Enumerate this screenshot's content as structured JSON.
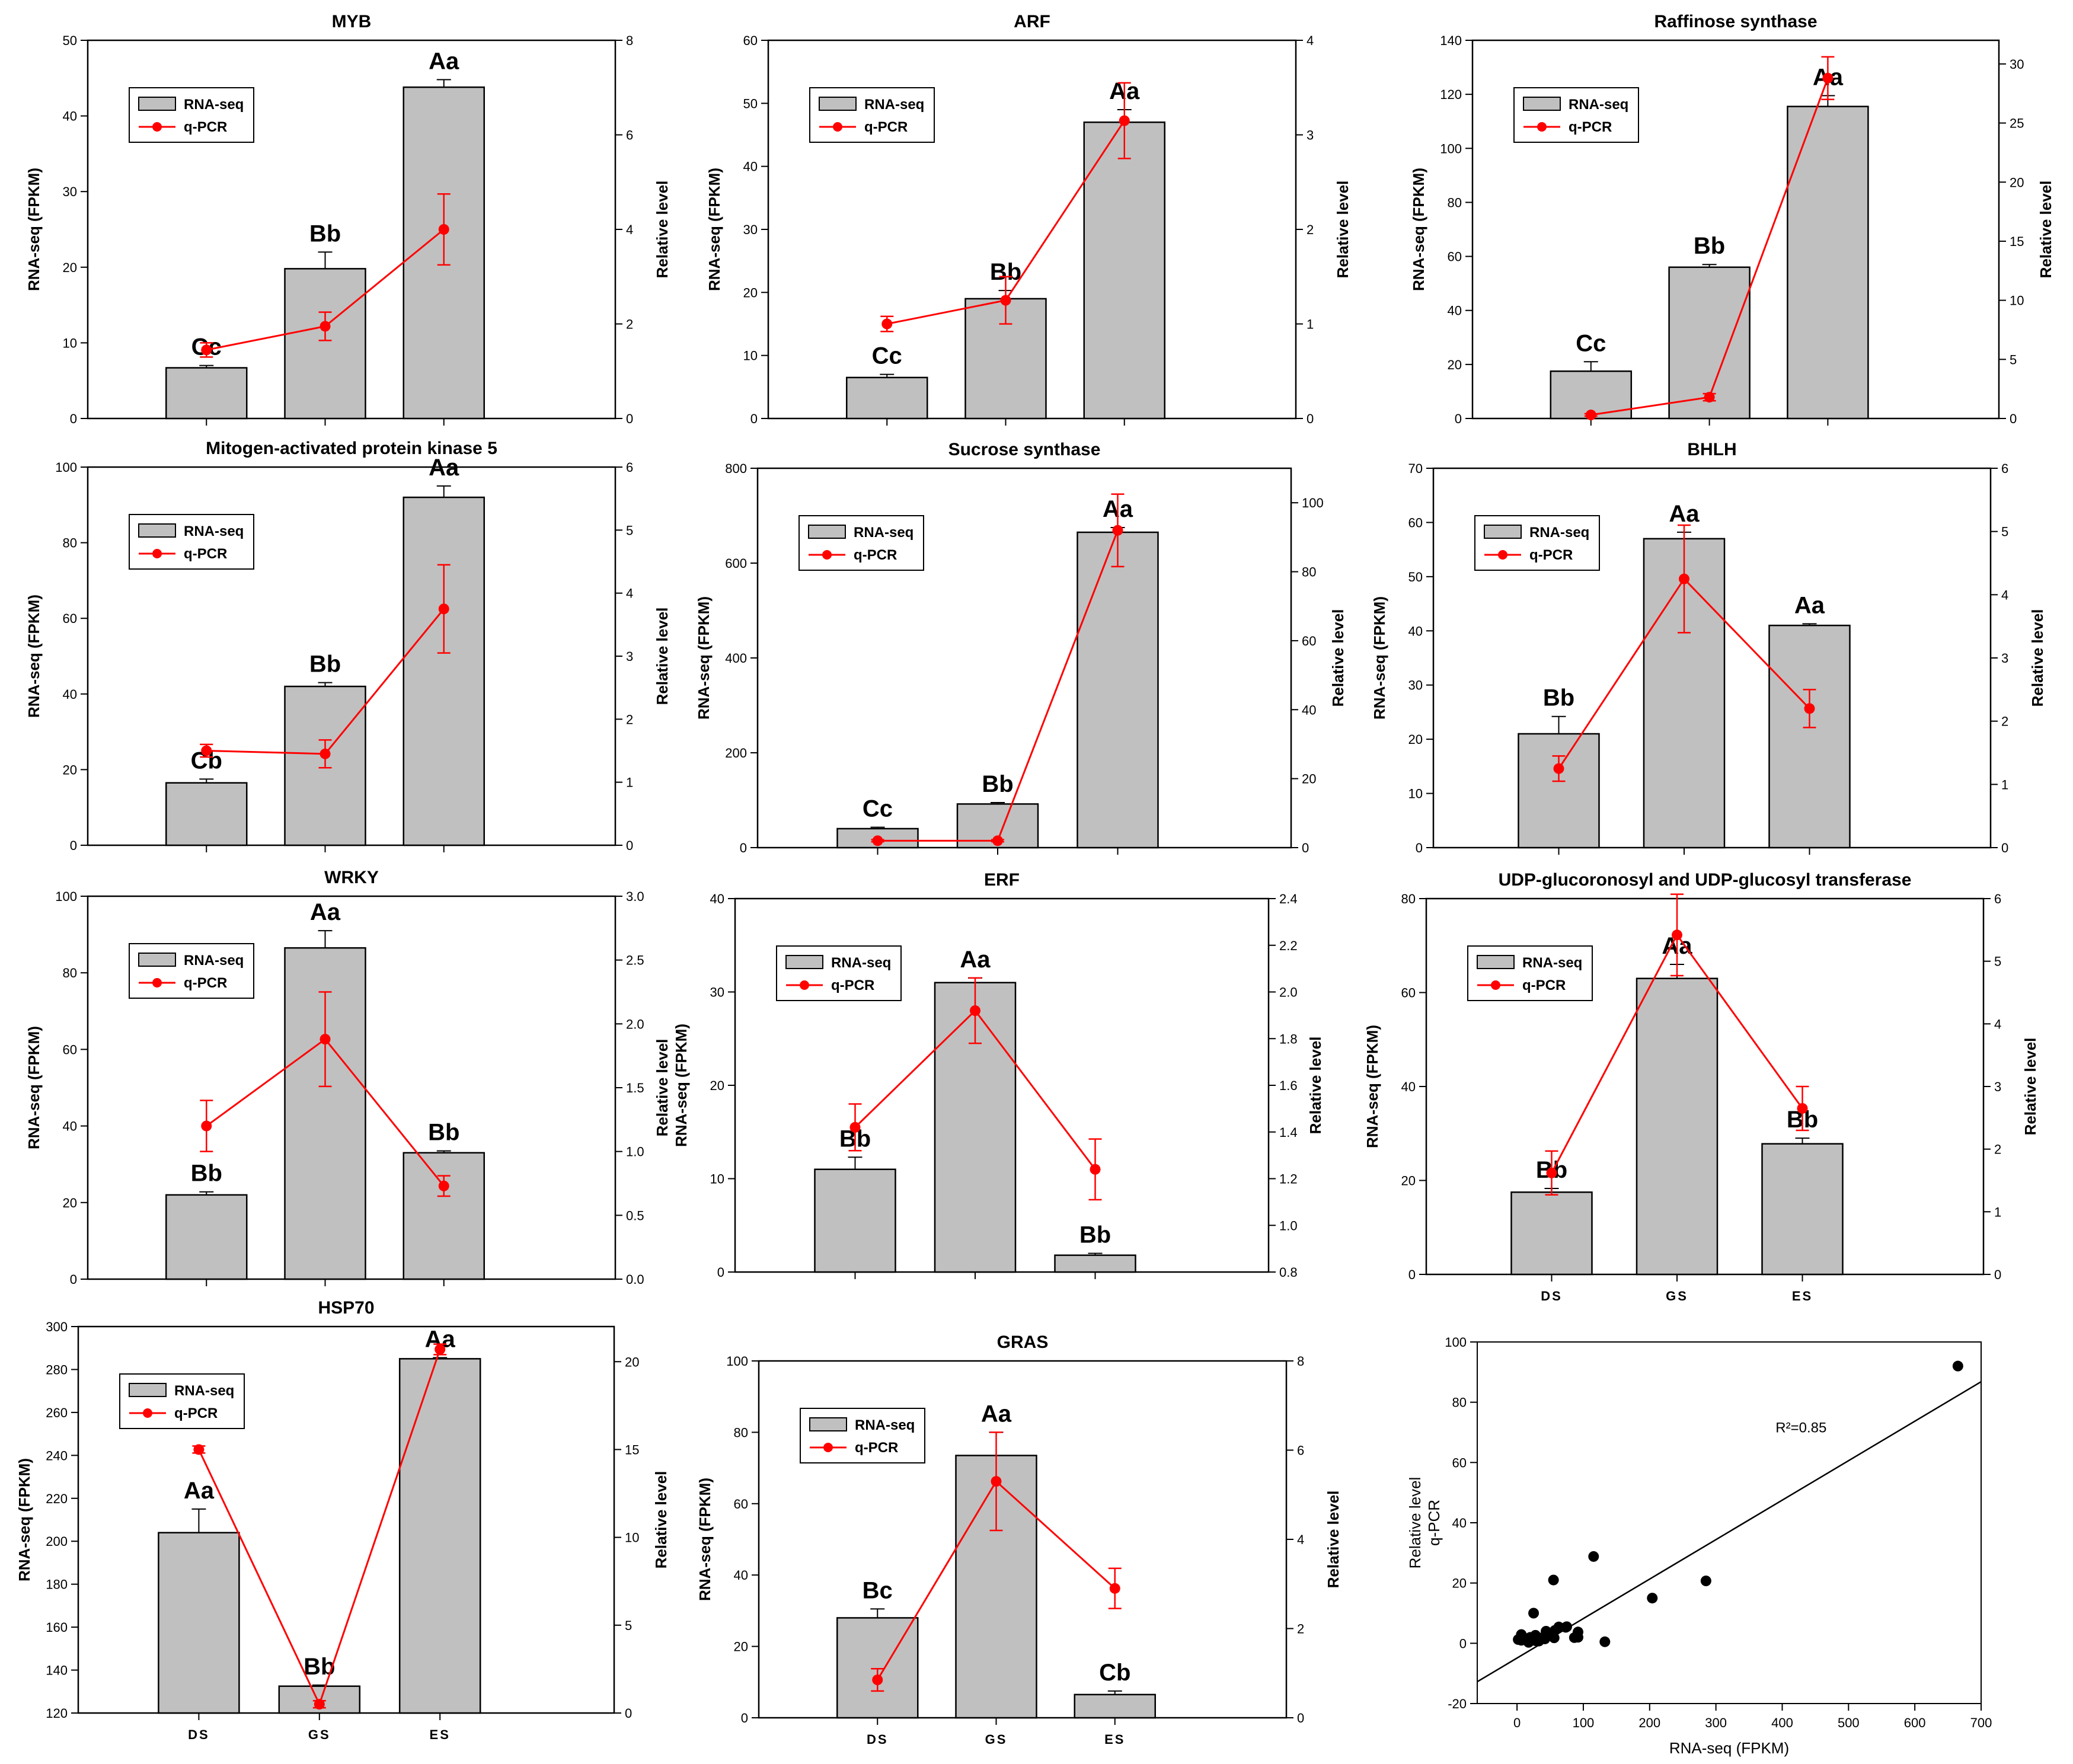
{
  "chart_data": [
    {
      "type": "bar",
      "title": "MYB",
      "categories": [
        "DS",
        "GS",
        "ES"
      ],
      "show_categories": false,
      "ylabel": "RNA-seq (FPKM)",
      "ylabel2": "Relative level",
      "ylim": [
        0,
        50
      ],
      "yticks": [
        0,
        10,
        20,
        30,
        40,
        50
      ],
      "y2lim": [
        0,
        8
      ],
      "y2ticks": [
        0,
        2,
        4,
        6,
        8
      ],
      "series": [
        {
          "name": "RNA-seq",
          "values": [
            6.7,
            19.8,
            43.8
          ],
          "errors": [
            0.3,
            2.2,
            1.0
          ]
        },
        {
          "name": "q-PCR",
          "values": [
            1.45,
            1.95,
            4.0
          ],
          "errors": [
            0.15,
            0.3,
            0.75
          ]
        }
      ],
      "significance": [
        "Cc",
        "Bb",
        "Aa"
      ]
    },
    {
      "type": "bar",
      "title": "ARF",
      "categories": [
        "DS",
        "GS",
        "ES"
      ],
      "show_categories": false,
      "ylabel": "RNA-seq (FPKM)",
      "ylabel2": "Relative level",
      "ylim": [
        0,
        60
      ],
      "yticks": [
        0,
        10,
        20,
        30,
        40,
        50,
        60
      ],
      "y2lim": [
        0,
        4
      ],
      "y2ticks": [
        0,
        1,
        2,
        3,
        4
      ],
      "series": [
        {
          "name": "RNA-seq",
          "values": [
            6.5,
            19.0,
            47.0
          ],
          "errors": [
            0.5,
            1.3,
            2.0
          ]
        },
        {
          "name": "q-PCR",
          "values": [
            1.0,
            1.25,
            3.15
          ],
          "errors": [
            0.08,
            0.25,
            0.4
          ]
        }
      ],
      "significance": [
        "Cc",
        "Bb",
        "Aa"
      ]
    },
    {
      "type": "bar",
      "title": "Raffinose synthase",
      "categories": [
        "DS",
        "GS",
        "ES"
      ],
      "show_categories": false,
      "ylabel": "RNA-seq (FPKM)",
      "ylabel2": "Relative level",
      "ylim": [
        0,
        140
      ],
      "yticks": [
        0,
        20,
        40,
        60,
        80,
        100,
        120,
        140
      ],
      "y2lim": [
        0,
        32
      ],
      "y2ticks": [
        0,
        5,
        10,
        15,
        20,
        25,
        30
      ],
      "series": [
        {
          "name": "RNA-seq",
          "values": [
            17.5,
            56.0,
            115.5
          ],
          "errors": [
            3.5,
            1.0,
            4.0
          ]
        },
        {
          "name": "q-PCR",
          "values": [
            0.3,
            1.8,
            28.8
          ],
          "errors": [
            0.1,
            0.3,
            1.8
          ]
        }
      ],
      "significance": [
        "Cc",
        "Bb",
        "Aa"
      ]
    },
    {
      "type": "bar",
      "title": "Mitogen-activated protein kinase 5",
      "categories": [
        "DS",
        "GS",
        "ES"
      ],
      "show_categories": false,
      "ylabel": "RNA-seq (FPKM)",
      "ylabel2": "Relative level",
      "ylim": [
        0,
        100
      ],
      "yticks": [
        0,
        20,
        40,
        60,
        80,
        100
      ],
      "y2lim": [
        0,
        6
      ],
      "y2ticks": [
        0,
        1,
        2,
        3,
        4,
        5,
        6
      ],
      "series": [
        {
          "name": "RNA-seq",
          "values": [
            16.5,
            42.0,
            92.0
          ],
          "errors": [
            1.0,
            1.0,
            3.0
          ]
        },
        {
          "name": "q-PCR",
          "values": [
            1.5,
            1.45,
            3.75
          ],
          "errors": [
            0.1,
            0.22,
            0.7
          ]
        }
      ],
      "significance": [
        "Cb",
        "Bb",
        "Aa"
      ]
    },
    {
      "type": "bar",
      "title": "Sucrose synthase",
      "categories": [
        "DS",
        "GS",
        "ES"
      ],
      "show_categories": false,
      "ylabel": "RNA-seq (FPKM)",
      "ylabel2": "Relative level",
      "ylim": [
        0,
        800
      ],
      "yticks": [
        0,
        200,
        400,
        600,
        800
      ],
      "y2lim": [
        0,
        110
      ],
      "y2ticks": [
        0,
        20,
        40,
        60,
        80,
        100
      ],
      "series": [
        {
          "name": "RNA-seq",
          "values": [
            40,
            92,
            665
          ],
          "errors": [
            3,
            3,
            10
          ]
        },
        {
          "name": "q-PCR",
          "values": [
            2.0,
            2.0,
            92.0
          ],
          "errors": [
            0.3,
            0.3,
            10.5
          ]
        }
      ],
      "significance": [
        "Cc",
        "Bb",
        "Aa"
      ]
    },
    {
      "type": "bar",
      "title": "BHLH",
      "categories": [
        "DS",
        "GS",
        "ES"
      ],
      "show_categories": false,
      "ylabel": "RNA-seq (FPKM)",
      "ylabel2": "Relative level",
      "ylim": [
        0,
        70
      ],
      "yticks": [
        0,
        10,
        20,
        30,
        40,
        50,
        60,
        70
      ],
      "y2lim": [
        0,
        6
      ],
      "y2ticks": [
        0,
        1,
        2,
        3,
        4,
        5,
        6
      ],
      "series": [
        {
          "name": "RNA-seq",
          "values": [
            21.0,
            57.0,
            41.0
          ],
          "errors": [
            3.2,
            1.2,
            0.3
          ]
        },
        {
          "name": "q-PCR",
          "values": [
            1.25,
            4.25,
            2.2
          ],
          "errors": [
            0.2,
            0.85,
            0.3
          ]
        }
      ],
      "significance": [
        "Bb",
        "Aa",
        "Aa"
      ]
    },
    {
      "type": "bar",
      "title": "WRKY",
      "categories": [
        "DS",
        "GS",
        "ES"
      ],
      "show_categories": false,
      "ylabel": "RNA-seq (FPKM)",
      "ylabel2": "Relative level",
      "ylim": [
        0,
        100
      ],
      "yticks": [
        0,
        20,
        40,
        60,
        80,
        100
      ],
      "y2lim": [
        0,
        3.0
      ],
      "y2ticks": [
        0.0,
        0.5,
        1.0,
        1.5,
        2.0,
        2.5,
        3.0
      ],
      "series": [
        {
          "name": "RNA-seq",
          "values": [
            22.0,
            86.5,
            33.0
          ],
          "errors": [
            0.8,
            4.5,
            0.5
          ]
        },
        {
          "name": "q-PCR",
          "values": [
            1.2,
            1.88,
            0.73
          ],
          "errors": [
            0.2,
            0.37,
            0.08
          ]
        }
      ],
      "significance": [
        "Bb",
        "Aa",
        "Bb"
      ]
    },
    {
      "type": "bar",
      "title": "ERF",
      "categories": [
        "DS",
        "GS",
        "ES"
      ],
      "show_categories": false,
      "ylabel": "RNA-seq (FPKM)",
      "ylabel2": "Relative level",
      "ylim": [
        0,
        40
      ],
      "yticks": [
        0,
        10,
        20,
        30,
        40
      ],
      "y2lim": [
        0.8,
        2.4
      ],
      "y2ticks": [
        0.8,
        1.0,
        1.2,
        1.4,
        1.6,
        1.8,
        2.0,
        2.2,
        2.4
      ],
      "series": [
        {
          "name": "RNA-seq",
          "values": [
            11.0,
            31.0,
            1.8
          ],
          "errors": [
            1.3,
            0.5,
            0.2
          ]
        },
        {
          "name": "q-PCR",
          "values": [
            1.42,
            1.92,
            1.24
          ],
          "errors": [
            0.1,
            0.14,
            0.13
          ]
        }
      ],
      "significance": [
        "Bb",
        "Aa",
        "Bb"
      ]
    },
    {
      "type": "bar",
      "title": "UDP-glucoronosyl and UDP-glucosyl transferase",
      "categories": [
        "DS",
        "GS",
        "ES"
      ],
      "show_categories": true,
      "ylabel": "RNA-seq (FPKM)",
      "ylabel2": "Relative level",
      "ylim": [
        0,
        80
      ],
      "yticks": [
        0,
        20,
        40,
        60,
        80
      ],
      "y2lim": [
        0,
        6
      ],
      "y2ticks": [
        0,
        1,
        2,
        3,
        4,
        5,
        6
      ],
      "series": [
        {
          "name": "RNA-seq",
          "values": [
            17.5,
            63.0,
            27.8
          ],
          "errors": [
            0.8,
            3.0,
            1.2
          ]
        },
        {
          "name": "q-PCR",
          "values": [
            1.62,
            5.42,
            2.65
          ],
          "errors": [
            0.35,
            0.65,
            0.35
          ]
        }
      ],
      "significance": [
        "Bb",
        "Aa",
        "Bb"
      ]
    },
    {
      "type": "bar",
      "title": "HSP70",
      "categories": [
        "DS",
        "GS",
        "ES"
      ],
      "show_categories": true,
      "ylabel": "RNA-seq (FPKM)",
      "ylabel2": "Relative level",
      "ylim": [
        120,
        300
      ],
      "yticks": [
        120,
        140,
        160,
        180,
        200,
        220,
        240,
        260,
        280,
        300
      ],
      "y2lim": [
        0,
        22
      ],
      "y2ticks": [
        0,
        5,
        10,
        15,
        20
      ],
      "series": [
        {
          "name": "RNA-seq",
          "values": [
            204,
            132.5,
            285
          ],
          "errors": [
            11,
            0.5,
            0.5
          ]
        },
        {
          "name": "q-PCR",
          "values": [
            15.0,
            0.5,
            20.7
          ],
          "errors": [
            0.2,
            0.2,
            0.3
          ]
        }
      ],
      "significance": [
        "Aa",
        "Bb",
        "Aa"
      ]
    },
    {
      "type": "bar",
      "title": "GRAS",
      "categories": [
        "DS",
        "GS",
        "ES"
      ],
      "show_categories": true,
      "ylabel": "RNA-seq (FPKM)",
      "ylabel2": "Relative level",
      "ylim": [
        0,
        100
      ],
      "yticks": [
        0,
        20,
        40,
        60,
        80,
        100
      ],
      "y2lim": [
        0,
        8
      ],
      "y2ticks": [
        0,
        2,
        4,
        6,
        8
      ],
      "series": [
        {
          "name": "RNA-seq",
          "values": [
            28.0,
            73.5,
            6.5
          ],
          "errors": [
            2.5,
            6.5,
            1.0
          ]
        },
        {
          "name": "q-PCR",
          "values": [
            0.85,
            5.3,
            2.9
          ],
          "errors": [
            0.25,
            1.1,
            0.45
          ]
        }
      ],
      "significance": [
        "Bc",
        "Aa",
        "Cb"
      ]
    },
    {
      "type": "scatter",
      "title": "",
      "xlabel": "RNA-seq (FPKM)",
      "ylabel_lines": [
        "Relative level",
        "q-PCR"
      ],
      "xlim": [
        -60,
        700
      ],
      "xticks": [
        0,
        100,
        200,
        300,
        400,
        500,
        600,
        700
      ],
      "ylim": [
        -20,
        100
      ],
      "yticks": [
        -20,
        0,
        20,
        40,
        60,
        80,
        100
      ],
      "r2": "R²=0.85",
      "r2_at": [
        390,
        70
      ],
      "fit": {
        "slope": 0.131,
        "intercept": -4.9
      },
      "points": [
        [
          6.7,
          1.45
        ],
        [
          19.8,
          1.95
        ],
        [
          43.8,
          4.0
        ],
        [
          6.5,
          1.0
        ],
        [
          19.0,
          1.25
        ],
        [
          47.0,
          3.15
        ],
        [
          17.5,
          0.3
        ],
        [
          56.0,
          1.8
        ],
        [
          115.5,
          28.8
        ],
        [
          16.5,
          1.5
        ],
        [
          42.0,
          1.45
        ],
        [
          92.0,
          3.75
        ],
        [
          40,
          2.0
        ],
        [
          92,
          2.0
        ],
        [
          665,
          92.0
        ],
        [
          21.0,
          1.25
        ],
        [
          57.0,
          4.25
        ],
        [
          41.0,
          2.2
        ],
        [
          22.0,
          1.2
        ],
        [
          86.5,
          1.88
        ],
        [
          33.0,
          0.73
        ],
        [
          11.0,
          1.42
        ],
        [
          31.0,
          1.92
        ],
        [
          1.8,
          1.24
        ],
        [
          17.5,
          1.62
        ],
        [
          63.0,
          5.42
        ],
        [
          27.8,
          2.65
        ],
        [
          204,
          15.0
        ],
        [
          132.5,
          0.5
        ],
        [
          285,
          20.7
        ],
        [
          28.0,
          0.85
        ],
        [
          73.5,
          5.3
        ],
        [
          6.5,
          2.9
        ],
        [
          25,
          10.0
        ],
        [
          55,
          21.0
        ],
        [
          75,
          5.5
        ]
      ]
    }
  ],
  "colors": {
    "bar_fill": "#c0c0c0",
    "bar_stroke": "#000000",
    "line": "#ff0000",
    "axis": "#000000",
    "point": "#000000"
  }
}
